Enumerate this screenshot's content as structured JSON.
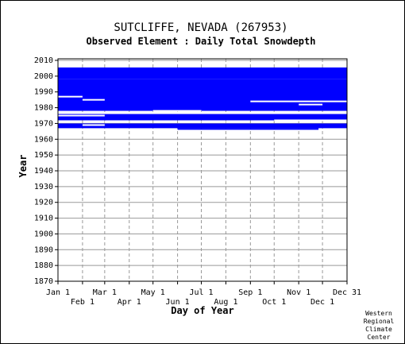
{
  "chart_data": {
    "type": "heatmap",
    "title": "SUTCLIFFE, NEVADA   (267953)",
    "subtitle": "Observed Element : Daily Total Snowdepth",
    "xlabel": "Day of Year",
    "ylabel": "Year",
    "xlim": [
      1,
      366
    ],
    "ylim": [
      1870,
      2011
    ],
    "grid": true,
    "x_ticks_top": [
      {
        "label": "Jan 1",
        "day": 1
      },
      {
        "label": "Mar 1",
        "day": 60
      },
      {
        "label": "May 1",
        "day": 121
      },
      {
        "label": "Jul 1",
        "day": 182
      },
      {
        "label": "Sep 1",
        "day": 244
      },
      {
        "label": "Nov 1",
        "day": 305
      },
      {
        "label": "Dec 31",
        "day": 366
      }
    ],
    "x_ticks_bottom": [
      {
        "label": "Feb 1",
        "day": 32
      },
      {
        "label": "Apr 1",
        "day": 91
      },
      {
        "label": "Jun 1",
        "day": 152
      },
      {
        "label": "Aug 1",
        "day": 213
      },
      {
        "label": "Oct 1",
        "day": 274
      },
      {
        "label": "Dec 1",
        "day": 335
      }
    ],
    "y_ticks": [
      2010,
      2000,
      1990,
      1980,
      1970,
      1960,
      1950,
      1940,
      1930,
      1920,
      1910,
      1900,
      1890,
      1880,
      1870
    ],
    "series": [
      {
        "name": "",
        "color": "#0000ff",
        "records": [
          {
            "start_year": 1998,
            "end_year": 2005.5,
            "start_day": 1,
            "end_day": 366
          },
          {
            "start_year": 1978,
            "end_year": 1998,
            "start_day": 1,
            "end_day": 366
          },
          {
            "start_year": 1972,
            "end_year": 1976,
            "start_day": 1,
            "end_day": 366
          },
          {
            "start_year": 1967,
            "end_year": 1970,
            "start_day": 1,
            "end_day": 366
          },
          {
            "start_year": 1966,
            "end_year": 1967,
            "start_day": 152,
            "end_day": 330
          }
        ]
      }
    ],
    "gaps": [
      {
        "year": 1987,
        "start_day": 1,
        "end_day": 32
      },
      {
        "year": 1985,
        "start_day": 32,
        "end_day": 60
      },
      {
        "year": 1984,
        "start_day": 244,
        "end_day": 366
      },
      {
        "year": 1982,
        "start_day": 305,
        "end_day": 335
      },
      {
        "year": 1978,
        "start_day": 121,
        "end_day": 182
      },
      {
        "year": 1977,
        "start_day": 274,
        "end_day": 305
      },
      {
        "year": 1975,
        "start_day": 1,
        "end_day": 60
      },
      {
        "year": 1971,
        "start_day": 60,
        "end_day": 91
      },
      {
        "year": 1971,
        "start_day": 182,
        "end_day": 213
      },
      {
        "year": 1972,
        "start_day": 274,
        "end_day": 366
      },
      {
        "year": 1969,
        "start_day": 32,
        "end_day": 60
      }
    ],
    "credit": [
      "Western",
      "Regional",
      "Climate",
      "Center"
    ]
  }
}
